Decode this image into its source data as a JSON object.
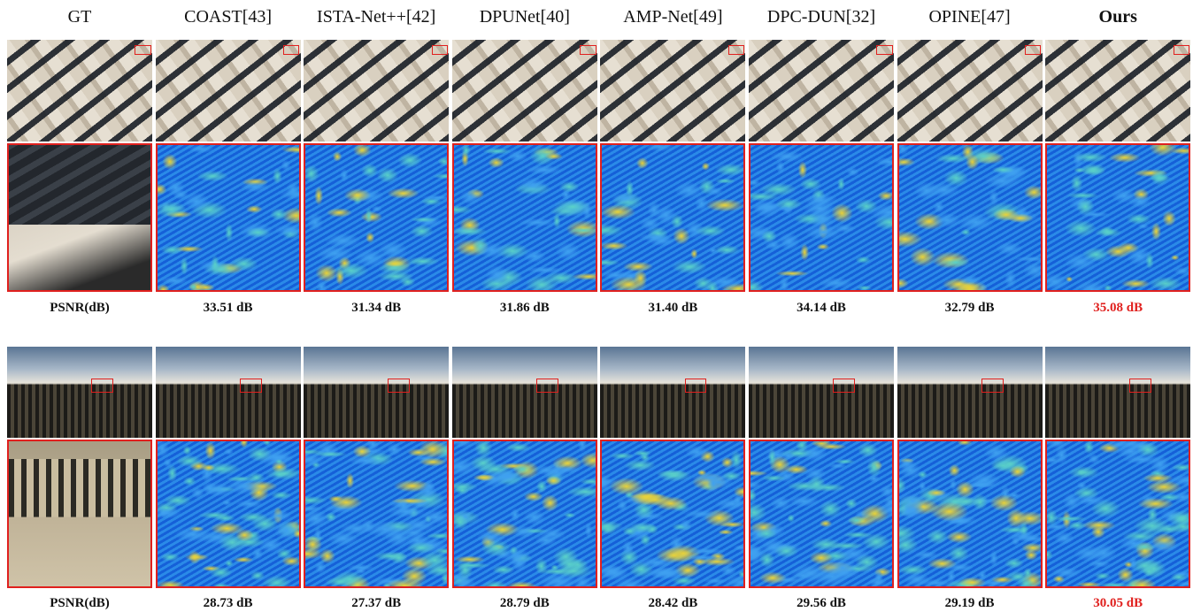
{
  "columns": [
    "GT",
    "COAST[43]",
    "ISTA-Net++[42]",
    "DPUNet[40]",
    "AMP-Net[49]",
    "DPC-DUN[32]",
    "OPINE[47]",
    "Ours"
  ],
  "rows": [
    {
      "label": "PSNR(dB)",
      "values": [
        "33.51 dB",
        "31.34 dB",
        "31.86 dB",
        "31.40 dB",
        "34.14 dB",
        "32.79 dB",
        "35.08 dB"
      ]
    },
    {
      "label": "PSNR(dB)",
      "values": [
        "28.73 dB",
        "27.37 dB",
        "28.79 dB",
        "28.42 dB",
        "29.56 dB",
        "29.19 dB",
        "30.05 dB"
      ]
    }
  ]
}
